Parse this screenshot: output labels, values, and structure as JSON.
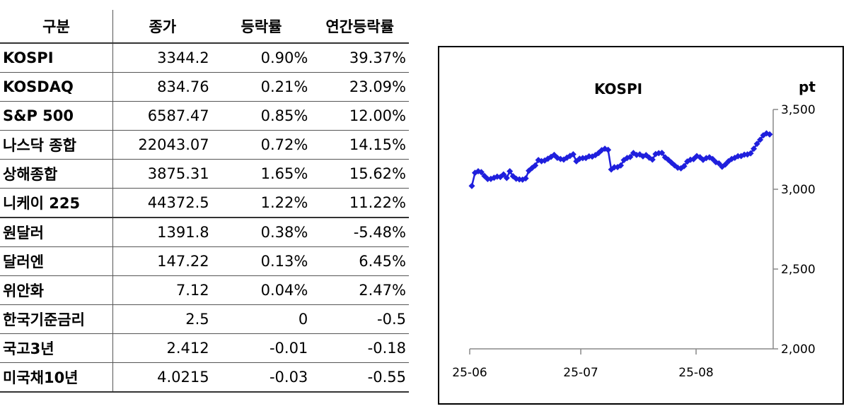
{
  "table": {
    "headers": [
      "구분",
      "종가",
      "등락률",
      "연간등락률"
    ],
    "rows": [
      [
        "KOSPI",
        "3344.2",
        "0.90%",
        "39.37%"
      ],
      [
        "KOSDAQ",
        "834.76",
        "0.21%",
        "23.09%"
      ],
      [
        "S&P 500",
        "6587.47",
        "0.85%",
        "12.00%"
      ],
      [
        "나스닥 종합",
        "22043.07",
        "0.72%",
        "14.15%"
      ],
      [
        "상해종합",
        "3875.31",
        "1.65%",
        "15.62%"
      ],
      [
        "니케이 225",
        "44372.5",
        "1.22%",
        "11.22%"
      ],
      [
        "원달러",
        "1391.8",
        "0.38%",
        "-5.48%"
      ],
      [
        "달러엔",
        "147.22",
        "0.13%",
        "6.45%"
      ],
      [
        "위안화",
        "7.12",
        "0.04%",
        "2.47%"
      ],
      [
        "한국기준금리",
        "2.5",
        "0",
        "-0.5"
      ],
      [
        "국고3년",
        "2.412",
        "-0.01",
        "-0.18"
      ],
      [
        "미국채10년",
        "4.0215",
        "-0.03",
        "-0.55"
      ]
    ]
  },
  "chart_data": {
    "type": "line",
    "title": "KOSPI",
    "ylabel": "pt",
    "xlabel": "",
    "ylim": [
      2000,
      3500
    ],
    "yticks": [
      2000,
      2500,
      3000,
      3500
    ],
    "ytick_labels": [
      "2,000",
      "2,500",
      "3,000",
      "3,500"
    ],
    "xticks": [
      "25-06",
      "25-07",
      "25-08"
    ],
    "series_color": "#1f1fdd",
    "grid": false,
    "legend": "none",
    "values": [
      3021,
      3103,
      3113,
      3107,
      3083,
      3064,
      3065,
      3072,
      3079,
      3077,
      3093,
      3071,
      3113,
      3082,
      3066,
      3062,
      3060,
      3068,
      3116,
      3133,
      3149,
      3183,
      3176,
      3180,
      3191,
      3203,
      3215,
      3197,
      3190,
      3186,
      3198,
      3209,
      3219,
      3175,
      3191,
      3195,
      3196,
      3206,
      3205,
      3214,
      3227,
      3245,
      3254,
      3247,
      3124,
      3138,
      3139,
      3149,
      3183,
      3196,
      3202,
      3227,
      3215,
      3218,
      3206,
      3214,
      3198,
      3186,
      3221,
      3226,
      3228,
      3200,
      3185,
      3167,
      3150,
      3135,
      3131,
      3145,
      3174,
      3185,
      3189,
      3208,
      3201,
      3184,
      3195,
      3200,
      3190,
      3170,
      3162,
      3141,
      3155,
      3175,
      3190,
      3197,
      3207,
      3208,
      3217,
      3218,
      3225,
      3254,
      3285,
      3310,
      3338,
      3350,
      3344
    ]
  }
}
